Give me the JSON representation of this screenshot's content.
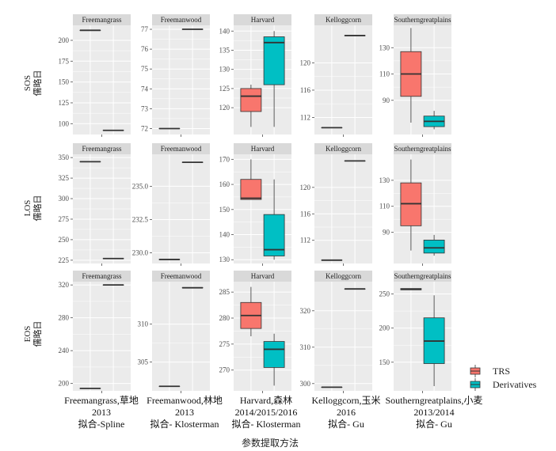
{
  "chart_data": {
    "type": "box",
    "xlabel": "参数提取方法",
    "colors": {
      "panel_bg": "#ebebeb",
      "strip_bg": "#d9d9d9",
      "grid": "#ffffff",
      "TRS": "#f8766d",
      "Derivatives": "#00bfc4"
    },
    "series": [
      {
        "name": "TRS"
      },
      {
        "name": "Derivatives"
      }
    ],
    "row_labels": [
      {
        "line1": "SOS",
        "line2": "儒略日"
      },
      {
        "line1": "LOS",
        "line2": "儒略日"
      },
      {
        "line1": "EOS",
        "line2": "儒略日"
      }
    ],
    "column_labels": [
      {
        "line1": "Freemangrass,草地",
        "line2": "2013",
        "line3": "拟合-Spline"
      },
      {
        "line1": "Freemanwood,林地",
        "line2": "2013",
        "line3": "拟合- Klosterman"
      },
      {
        "line1": "Harvard,森林",
        "line2": "2014/2015/2016",
        "line3": "拟合- Klosterman"
      },
      {
        "line1": "Kelloggcorn,玉米",
        "line2": "2016",
        "line3": "拟合- Gu"
      },
      {
        "line1": "Southerngreatplains,小麦",
        "line2": "2013/2014",
        "line3": "拟合- Gu"
      }
    ],
    "panels": [
      {
        "row": 0,
        "col": 0,
        "strip": "Freemangrass",
        "ylim": [
          87,
          218
        ],
        "ticks": [
          100,
          125,
          150,
          175,
          200
        ],
        "tick_labels": [
          "100",
          "125",
          "150",
          "175",
          "200"
        ],
        "boxes": [
          {
            "series": "TRS",
            "values": [
              212,
              212,
              212,
              212,
              212
            ]
          },
          {
            "series": "Derivatives",
            "values": [
              92,
              92,
              92,
              92,
              92
            ]
          }
        ]
      },
      {
        "row": 0,
        "col": 1,
        "strip": "Freemanwood",
        "ylim": [
          71.7,
          77.2
        ],
        "ticks": [
          72,
          73,
          74,
          75,
          76,
          77
        ],
        "tick_labels": [
          "72",
          "73",
          "74",
          "75",
          "76",
          "77"
        ],
        "boxes": [
          {
            "series": "TRS",
            "values": [
              72,
              72,
              72,
              72,
              72
            ]
          },
          {
            "series": "Derivatives",
            "values": [
              77,
              77,
              77,
              77,
              77
            ]
          }
        ]
      },
      {
        "row": 0,
        "col": 2,
        "strip": "Harvard",
        "ylim": [
          113,
          141.5
        ],
        "ticks": [
          120,
          125,
          130,
          135,
          140
        ],
        "tick_labels": [
          "120",
          "125",
          "130",
          "135",
          "140"
        ],
        "boxes": [
          {
            "series": "TRS",
            "values": [
              115,
              119,
              123,
              125,
              126
            ]
          },
          {
            "series": "Derivatives",
            "values": [
              115,
              126,
              137,
              138.5,
              140
            ]
          }
        ]
      },
      {
        "row": 0,
        "col": 3,
        "strip": "Kelloggcorn",
        "ylim": [
          109.5,
          125.5
        ],
        "ticks": [
          112,
          116,
          120
        ],
        "tick_labels": [
          "112",
          "116",
          "120"
        ],
        "boxes": [
          {
            "series": "TRS",
            "values": [
              110.5,
              110.5,
              110.5,
              110.5,
              110.5
            ]
          },
          {
            "series": "Derivatives",
            "values": [
              124,
              124,
              124,
              124,
              124
            ]
          }
        ]
      },
      {
        "row": 0,
        "col": 4,
        "strip": "Southerngreatplains",
        "ylim": [
          64,
          147
        ],
        "ticks": [
          90,
          110,
          130
        ],
        "tick_labels": [
          "90",
          "110",
          "130"
        ],
        "boxes": [
          {
            "series": "TRS",
            "values": [
              73,
              93,
              110,
              127,
              145
            ]
          },
          {
            "series": "Derivatives",
            "values": [
              68,
              70,
              74,
              78,
              82
            ]
          }
        ]
      },
      {
        "row": 1,
        "col": 0,
        "strip": "Freemangrass",
        "ylim": [
          221,
          354
        ],
        "ticks": [
          225,
          250,
          275,
          300,
          325,
          350
        ],
        "tick_labels": [
          "225",
          "250",
          "275",
          "300",
          "325",
          "350"
        ],
        "boxes": [
          {
            "series": "TRS",
            "values": [
              345,
              345,
              345,
              345,
              345
            ]
          },
          {
            "series": "Derivatives",
            "values": [
              227,
              227,
              227,
              227,
              227
            ]
          }
        ]
      },
      {
        "row": 1,
        "col": 1,
        "strip": "Freemanwood",
        "ylim": [
          229.2,
          237.4
        ],
        "ticks": [
          230.0,
          232.5,
          235.0
        ],
        "tick_labels": [
          "230.0",
          "232.5",
          "235.0"
        ],
        "boxes": [
          {
            "series": "TRS",
            "values": [
              229.5,
              229.5,
              229.5,
              229.5,
              229.5
            ]
          },
          {
            "series": "Derivatives",
            "values": [
              236.8,
              236.8,
              236.8,
              236.8,
              236.8
            ]
          }
        ]
      },
      {
        "row": 1,
        "col": 2,
        "strip": "Harvard",
        "ylim": [
          128.5,
          172
        ],
        "ticks": [
          130,
          140,
          150,
          160,
          170
        ],
        "tick_labels": [
          "130",
          "140",
          "150",
          "160",
          "170"
        ],
        "boxes": [
          {
            "series": "TRS",
            "values": [
              154,
              154,
              154.5,
              162,
              170
            ]
          },
          {
            "series": "Derivatives",
            "values": [
              130,
              131.5,
              134,
              148,
              162
            ]
          }
        ]
      },
      {
        "row": 1,
        "col": 3,
        "strip": "Kelloggcorn",
        "ylim": [
          108.5,
          125
        ],
        "ticks": [
          112,
          116,
          120
        ],
        "tick_labels": [
          "112",
          "116",
          "120"
        ],
        "boxes": [
          {
            "series": "TRS",
            "values": [
              109,
              109,
              109,
              109,
              109
            ]
          },
          {
            "series": "Derivatives",
            "values": [
              124,
              124,
              124,
              124,
              124
            ]
          }
        ]
      },
      {
        "row": 1,
        "col": 4,
        "strip": "Southerngreatplains",
        "ylim": [
          66,
          150
        ],
        "ticks": [
          90,
          110,
          130
        ],
        "tick_labels": [
          "90",
          "110",
          "130"
        ],
        "boxes": [
          {
            "series": "TRS",
            "values": [
              76,
              95,
              112,
              128,
              146
            ]
          },
          {
            "series": "Derivatives",
            "values": [
              72,
              74,
              78,
              84,
              88
            ]
          }
        ]
      },
      {
        "row": 2,
        "col": 0,
        "strip": "Freemangrass",
        "ylim": [
          191,
          324
        ],
        "ticks": [
          200,
          240,
          280,
          320
        ],
        "tick_labels": [
          "200",
          "240",
          "280",
          "320"
        ],
        "boxes": [
          {
            "series": "TRS",
            "values": [
              194,
              194,
              194,
              194,
              194
            ]
          },
          {
            "series": "Derivatives",
            "values": [
              320,
              320,
              320,
              320,
              320
            ]
          }
        ]
      },
      {
        "row": 2,
        "col": 1,
        "strip": "Freemanwood",
        "ylim": [
          301.2,
          315.6
        ],
        "ticks": [
          305,
          310
        ],
        "tick_labels": [
          "305",
          "310"
        ],
        "boxes": [
          {
            "series": "TRS",
            "values": [
              301.8,
              301.8,
              301.8,
              301.8,
              301.8
            ]
          },
          {
            "series": "Derivatives",
            "values": [
              314.8,
              314.8,
              314.8,
              314.8,
              314.8
            ]
          }
        ]
      },
      {
        "row": 2,
        "col": 2,
        "strip": "Harvard",
        "ylim": [
          266,
          287
        ],
        "ticks": [
          270,
          275,
          280,
          285
        ],
        "tick_labels": [
          "270",
          "275",
          "280",
          "285"
        ],
        "boxes": [
          {
            "series": "TRS",
            "values": [
              276.5,
              278,
              280.5,
              283,
              286
            ]
          },
          {
            "series": "Derivatives",
            "values": [
              267,
              270.5,
              274,
              275.5,
              277
            ]
          }
        ]
      },
      {
        "row": 2,
        "col": 3,
        "strip": "Kelloggcorn",
        "ylim": [
          298,
          328
        ],
        "ticks": [
          300,
          310,
          320
        ],
        "tick_labels": [
          "300",
          "310",
          "320"
        ],
        "boxes": [
          {
            "series": "TRS",
            "values": [
              299,
              299,
              299,
              299,
              299
            ]
          },
          {
            "series": "Derivatives",
            "values": [
              326,
              326,
              326,
              326,
              326
            ]
          }
        ]
      },
      {
        "row": 2,
        "col": 4,
        "strip": "Southerngreatplains",
        "ylim": [
          108,
          268
        ],
        "ticks": [
          150,
          200,
          250
        ],
        "tick_labels": [
          "150",
          "200",
          "250"
        ],
        "boxes": [
          {
            "series": "TRS",
            "values": [
              256,
              256,
              257,
              258,
              258
            ]
          },
          {
            "series": "Derivatives",
            "values": [
              115,
              148,
              181,
              215,
              248
            ]
          }
        ]
      }
    ]
  }
}
